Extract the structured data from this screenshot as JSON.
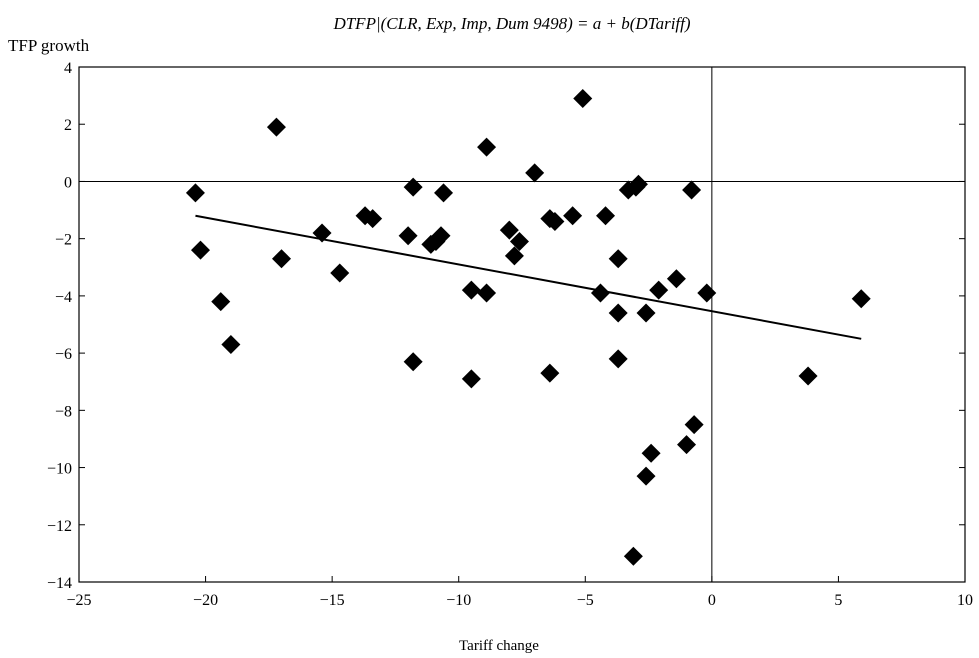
{
  "chart_data": {
    "type": "scatter",
    "title": "DTFP|(CLR, Exp, Imp, Dum 9498) = a + b(DTariff)",
    "xlabel": "Tariff change",
    "ylabel": "TFP growth",
    "xlim": [
      -25,
      10
    ],
    "ylim": [
      -14,
      4
    ],
    "xticks": [
      -25,
      -20,
      -15,
      -10,
      -5,
      0,
      5,
      10
    ],
    "yticks": [
      4,
      2,
      0,
      -2,
      -4,
      -6,
      -8,
      -10,
      -12,
      -14
    ],
    "xtick_labels": [
      "−25",
      "−20",
      "−15",
      "−10",
      "−5",
      "0",
      "5",
      "10"
    ],
    "ytick_labels": [
      "4",
      "2",
      "0",
      "−2",
      "−4",
      "−6",
      "−8",
      "−10",
      "−12",
      "−14"
    ],
    "zero_lines": true,
    "grid": false,
    "marker": "diamond",
    "marker_color": "#000000",
    "points": [
      {
        "x": -20.4,
        "y": -0.4
      },
      {
        "x": -20.2,
        "y": -2.4
      },
      {
        "x": -19.4,
        "y": -4.2
      },
      {
        "x": -19.0,
        "y": -5.7
      },
      {
        "x": -17.2,
        "y": 1.9
      },
      {
        "x": -17.0,
        "y": -2.7
      },
      {
        "x": -15.4,
        "y": -1.8
      },
      {
        "x": -14.7,
        "y": -3.2
      },
      {
        "x": -13.7,
        "y": -1.2
      },
      {
        "x": -13.4,
        "y": -1.3
      },
      {
        "x": -12.0,
        "y": -1.9
      },
      {
        "x": -11.8,
        "y": -0.2
      },
      {
        "x": -11.8,
        "y": -6.3
      },
      {
        "x": -11.1,
        "y": -2.2
      },
      {
        "x": -10.9,
        "y": -2.1
      },
      {
        "x": -10.7,
        "y": -1.9
      },
      {
        "x": -10.6,
        "y": -0.4
      },
      {
        "x": -9.5,
        "y": -3.8
      },
      {
        "x": -9.5,
        "y": -6.9
      },
      {
        "x": -8.9,
        "y": 1.2
      },
      {
        "x": -8.9,
        "y": -3.9
      },
      {
        "x": -8.0,
        "y": -1.7
      },
      {
        "x": -7.8,
        "y": -2.6
      },
      {
        "x": -7.6,
        "y": -2.1
      },
      {
        "x": -7.0,
        "y": 0.3
      },
      {
        "x": -6.4,
        "y": -1.3
      },
      {
        "x": -6.4,
        "y": -6.7
      },
      {
        "x": -6.2,
        "y": -1.4
      },
      {
        "x": -5.5,
        "y": -1.2
      },
      {
        "x": -5.1,
        "y": 2.9
      },
      {
        "x": -4.4,
        "y": -3.9
      },
      {
        "x": -4.2,
        "y": -1.2
      },
      {
        "x": -3.7,
        "y": -2.7
      },
      {
        "x": -3.7,
        "y": -4.6
      },
      {
        "x": -3.7,
        "y": -6.2
      },
      {
        "x": -3.3,
        "y": -0.3
      },
      {
        "x": -3.1,
        "y": -13.1
      },
      {
        "x": -3.0,
        "y": -0.2
      },
      {
        "x": -2.9,
        "y": -0.1
      },
      {
        "x": -2.6,
        "y": -4.6
      },
      {
        "x": -2.6,
        "y": -10.3
      },
      {
        "x": -2.4,
        "y": -9.5
      },
      {
        "x": -2.1,
        "y": -3.8
      },
      {
        "x": -1.4,
        "y": -3.4
      },
      {
        "x": -1.0,
        "y": -9.2
      },
      {
        "x": -0.8,
        "y": -0.3
      },
      {
        "x": -0.7,
        "y": -8.5
      },
      {
        "x": -0.2,
        "y": -3.9
      },
      {
        "x": 3.8,
        "y": -6.8
      },
      {
        "x": 5.9,
        "y": -4.1
      }
    ],
    "trend_line": {
      "x": [
        -20.4,
        5.9
      ],
      "y": [
        -1.2,
        -5.5
      ]
    }
  }
}
